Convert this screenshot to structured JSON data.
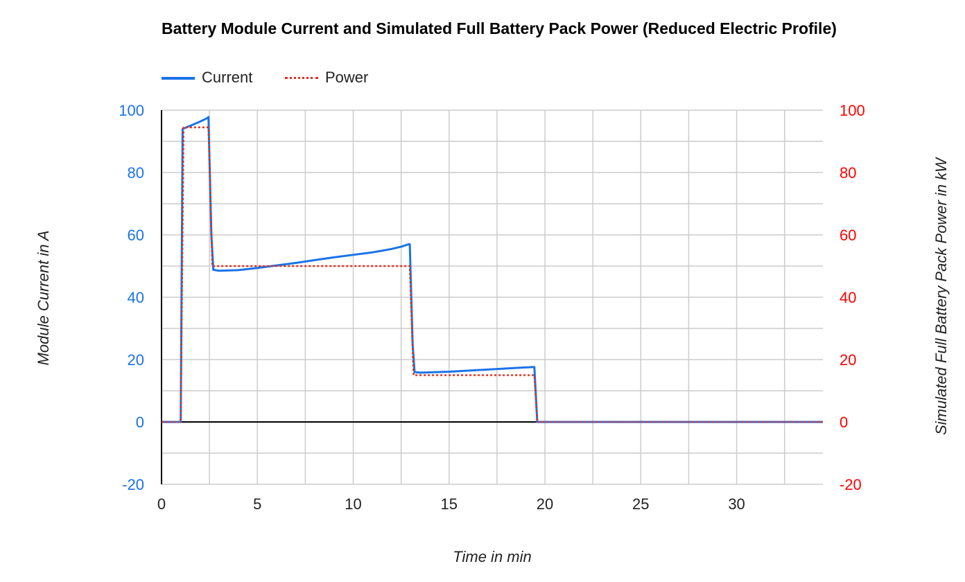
{
  "chart_data": {
    "type": "line",
    "title": "Battery Module Current and Simulated Full Battery Pack Power (Reduced Electric Profile)",
    "xlabel": "Time in min",
    "ylabel_left": "Module Current in A",
    "ylabel_right": "Simulated Full Battery Pack Power in kW",
    "xlim": [
      0,
      34.5
    ],
    "ylim_left": [
      -20,
      100
    ],
    "ylim_right": [
      -20,
      100
    ],
    "x_ticks": [
      "0",
      "5",
      "10",
      "15",
      "20",
      "25",
      "30"
    ],
    "y_ticks_left": [
      "100",
      "80",
      "60",
      "40",
      "20",
      "0",
      "-20"
    ],
    "y_ticks_right": [
      "100",
      "80",
      "60",
      "40",
      "20",
      "0",
      "-20"
    ],
    "grid": true,
    "legend_position": "top-left",
    "series": [
      {
        "name": "Current",
        "axis": "left",
        "color": "#1a73e8",
        "style": "solid",
        "x": [
          0,
          1.0,
          1.1,
          1.5,
          2.0,
          2.4,
          2.45,
          2.6,
          2.7,
          3.0,
          4.0,
          5.0,
          6.0,
          7.0,
          8.0,
          9.0,
          10.0,
          11.0,
          11.5,
          12.0,
          12.5,
          12.9,
          12.95,
          13.1,
          13.2,
          13.5,
          15.0,
          17.0,
          19.0,
          19.4,
          19.45,
          19.6,
          34.5
        ],
        "y": [
          0,
          0,
          94,
          95,
          96.3,
          97.5,
          97.8,
          60,
          48.8,
          48.5,
          48.7,
          49.4,
          50.2,
          51.0,
          51.9,
          52.8,
          53.6,
          54.4,
          54.9,
          55.5,
          56.2,
          57,
          57,
          25,
          16,
          15.8,
          16.1,
          16.8,
          17.5,
          17.6,
          17.6,
          0,
          0
        ]
      },
      {
        "name": "Power",
        "axis": "right",
        "color": "#e0301e",
        "style": "dotted",
        "x": [
          0,
          1.0,
          1.15,
          2.45,
          2.65,
          12.95,
          13.15,
          19.45,
          19.6,
          34.5
        ],
        "y": [
          0,
          0,
          94.5,
          94.5,
          50,
          50,
          15,
          15,
          0,
          0
        ]
      }
    ],
    "colors": {
      "left_axis": "#1a73e8",
      "right_axis": "#ff0000",
      "grid": "#cccccc",
      "zero_line": "#000000"
    }
  }
}
